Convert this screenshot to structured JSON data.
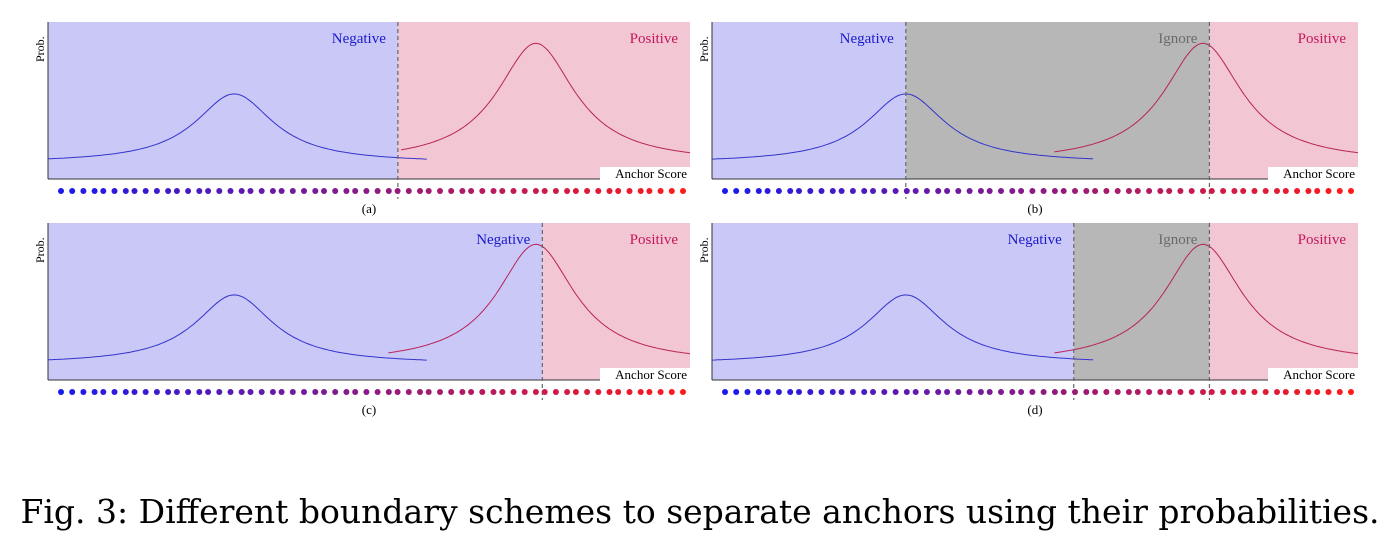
{
  "chart_data": [
    {
      "type": "area",
      "id": "a",
      "panel_label": "(a)",
      "ylabel": "Prob.",
      "xlabel": "Anchor Score",
      "regions": [
        {
          "name": "Negative",
          "label": "Negative",
          "from": 0.0,
          "to": 0.545,
          "color": "#c9c8f7",
          "label_color": "#1a1acc"
        },
        {
          "name": "Positive",
          "label": "Positive",
          "from": 0.545,
          "to": 1.0,
          "color": "#f3c6d3",
          "label_color": "#c2185b"
        }
      ],
      "boundaries": [
        0.545
      ],
      "curves": [
        {
          "name": "negative",
          "color": "#3333cc",
          "x_from": 0.0,
          "x_to": 0.59,
          "center": 0.29,
          "height": 0.58
        },
        {
          "name": "positive",
          "color": "#b8245a",
          "x_from": 0.55,
          "x_to": 1.0,
          "center": 0.76,
          "height": 0.96
        }
      ]
    },
    {
      "type": "area",
      "id": "b",
      "panel_label": "(b)",
      "ylabel": "Prob.",
      "xlabel": "Anchor Score",
      "regions": [
        {
          "name": "Negative",
          "label": "Negative",
          "from": 0.0,
          "to": 0.3,
          "color": "#c9c8f7",
          "label_color": "#1a1acc"
        },
        {
          "name": "Ignore",
          "label": "Ignore",
          "from": 0.3,
          "to": 0.77,
          "color": "#b7b7b7",
          "label_color": "#6b6b6b"
        },
        {
          "name": "Positive",
          "label": "Positive",
          "from": 0.77,
          "to": 1.0,
          "color": "#f3c6d3",
          "label_color": "#c2185b"
        }
      ],
      "boundaries": [
        0.3,
        0.77
      ],
      "curves": [
        {
          "name": "negative",
          "color": "#3333cc",
          "x_from": 0.0,
          "x_to": 0.59,
          "center": 0.3,
          "height": 0.58
        },
        {
          "name": "positive",
          "color": "#b8245a",
          "x_from": 0.53,
          "x_to": 1.0,
          "center": 0.76,
          "height": 0.96
        }
      ]
    },
    {
      "type": "area",
      "id": "c",
      "panel_label": "(c)",
      "ylabel": "Prob.",
      "xlabel": "Anchor Score",
      "regions": [
        {
          "name": "Negative",
          "label": "Negative",
          "from": 0.0,
          "to": 0.77,
          "color": "#c9c8f7",
          "label_color": "#1a1acc"
        },
        {
          "name": "Positive",
          "label": "Positive",
          "from": 0.77,
          "to": 1.0,
          "color": "#f3c6d3",
          "label_color": "#c2185b"
        }
      ],
      "boundaries": [
        0.77
      ],
      "curves": [
        {
          "name": "negative",
          "color": "#3333cc",
          "x_from": 0.0,
          "x_to": 0.59,
          "center": 0.29,
          "height": 0.58
        },
        {
          "name": "positive",
          "color": "#b8245a",
          "x_from": 0.53,
          "x_to": 1.0,
          "center": 0.76,
          "height": 0.96
        }
      ]
    },
    {
      "type": "area",
      "id": "d",
      "panel_label": "(d)",
      "ylabel": "Prob.",
      "xlabel": "Anchor Score",
      "regions": [
        {
          "name": "Negative",
          "label": "Negative",
          "from": 0.0,
          "to": 0.56,
          "color": "#c9c8f7",
          "label_color": "#1a1acc"
        },
        {
          "name": "Ignore",
          "label": "Ignore",
          "from": 0.56,
          "to": 0.77,
          "color": "#b7b7b7",
          "label_color": "#6b6b6b"
        },
        {
          "name": "Positive",
          "label": "Positive",
          "from": 0.77,
          "to": 1.0,
          "color": "#f3c6d3",
          "label_color": "#c2185b"
        }
      ],
      "boundaries": [
        0.56,
        0.77
      ],
      "curves": [
        {
          "name": "negative",
          "color": "#3333cc",
          "x_from": 0.0,
          "x_to": 0.59,
          "center": 0.3,
          "height": 0.58
        },
        {
          "name": "positive",
          "color": "#b8245a",
          "x_from": 0.53,
          "x_to": 1.0,
          "center": 0.76,
          "height": 0.96
        }
      ]
    }
  ],
  "anchor_dots": {
    "count": 60,
    "start_color": "#1a1aee",
    "end_color": "#ff1a1a"
  },
  "caption": "Fig. 3: Different boundary schemes to separate anchors using their probabilities."
}
